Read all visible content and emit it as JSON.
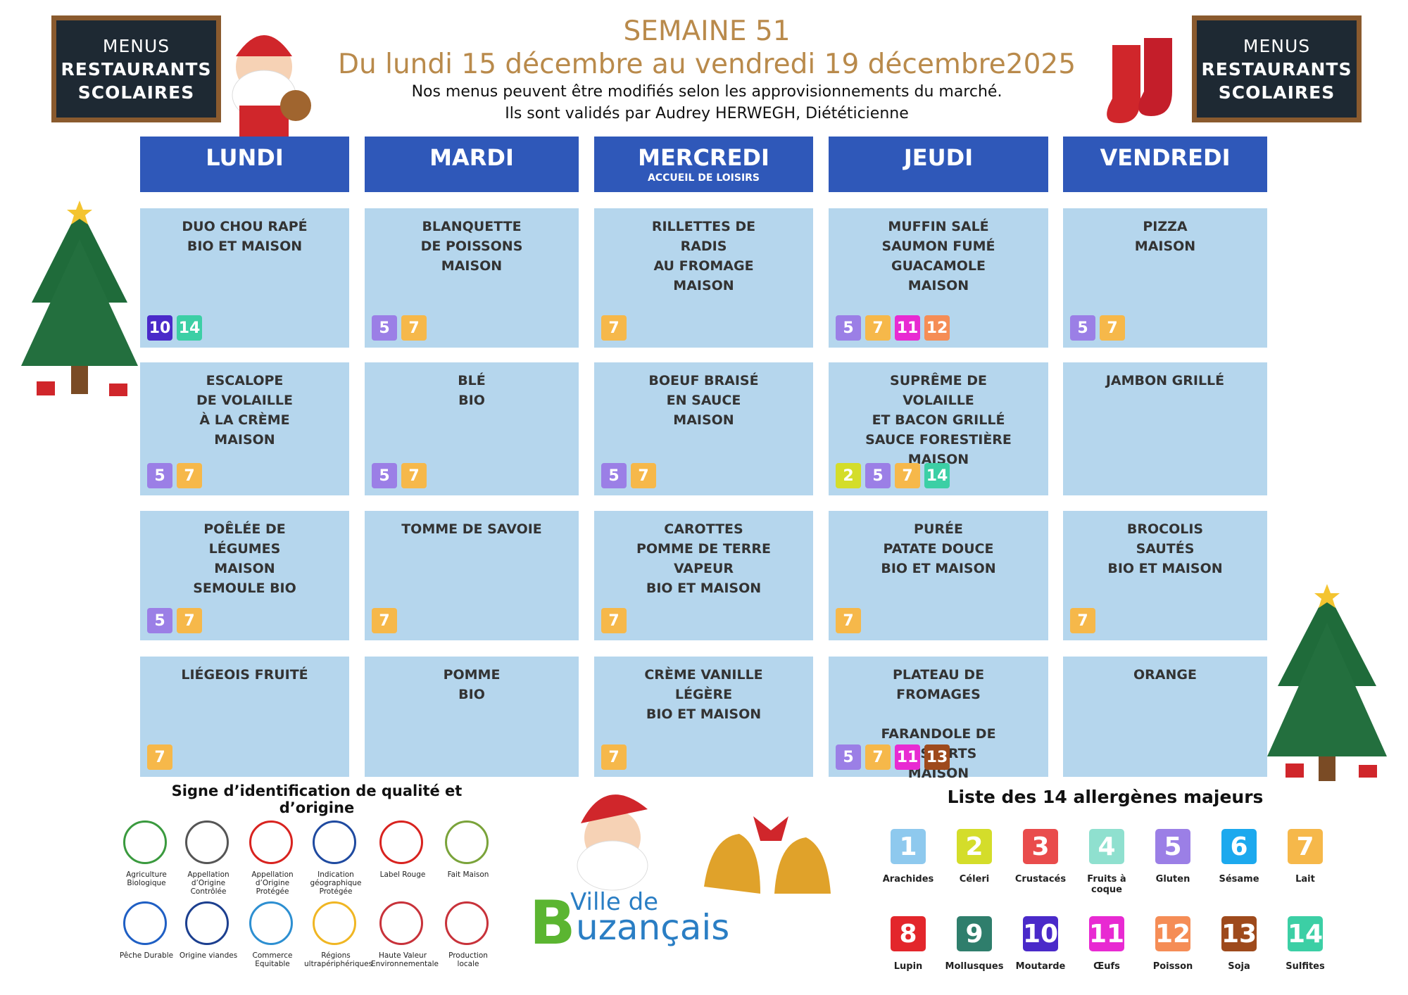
{
  "header": {
    "badges": [
      [
        "MENUS",
        "RESTAURANTS",
        "SCOLAIRES"
      ],
      [
        "MENUS",
        "RESTAURANTS",
        "SCOLAIRES"
      ]
    ],
    "title": "SEMAINE 51",
    "subtitle": "Du lundi 15 décembre au vendredi 19 décembre2025",
    "notes": [
      "Nos menus peuvent être modifiés selon les approvisionnements du marché.",
      "Ils sont validés par Audrey HERWEGH, Diététicienne"
    ]
  },
  "menu": {
    "days": [
      {
        "name": "LUNDI"
      },
      {
        "name": "MARDI"
      },
      {
        "name": "MERCREDI",
        "note": "ACCUEIL DE LOISIRS"
      },
      {
        "name": "JEUDI"
      },
      {
        "name": "VENDREDI"
      }
    ],
    "rows": [
      [
        {
          "dishes": [
            [
              "DUO CHOU RAPÉ",
              "BIO ET MAISON"
            ]
          ],
          "allergens": [
            10,
            14
          ]
        },
        {
          "dishes": [
            [
              "BLANQUETTE",
              "DE POISSONS",
              "MAISON"
            ]
          ],
          "allergens": [
            5,
            7
          ]
        },
        {
          "dishes": [
            [
              "RILLETTES DE RADIS",
              "AU FROMAGE",
              "MAISON"
            ]
          ],
          "allergens": [
            7
          ]
        },
        {
          "dishes": [
            [
              "MUFFIN SALÉ",
              "SAUMON FUMÉ",
              "GUACAMOLE",
              "MAISON"
            ]
          ],
          "allergens": [
            5,
            7,
            11,
            12
          ]
        },
        {
          "dishes": [
            [
              "PIZZA",
              "MAISON"
            ]
          ],
          "allergens": [
            5,
            7
          ]
        }
      ],
      [
        {
          "dishes": [
            [
              "ESCALOPE",
              "DE VOLAILLE",
              "À LA CRÈME",
              "MAISON"
            ]
          ],
          "allergens": [
            5,
            7
          ]
        },
        {
          "dishes": [
            [
              "BLÉ",
              "BIO"
            ]
          ],
          "allergens": [
            5,
            7
          ]
        },
        {
          "dishes": [
            [
              "BOEUF BRAISÉ",
              "EN SAUCE",
              "MAISON"
            ]
          ],
          "allergens": [
            5,
            7
          ]
        },
        {
          "dishes": [
            [
              "SUPRÊME DE VOLAILLE",
              "ET BACON GRILLÉ",
              "SAUCE FORESTIÈRE",
              "MAISON"
            ]
          ],
          "allergens": [
            2,
            5,
            7,
            14
          ]
        },
        {
          "dishes": [
            [
              "JAMBON GRILLÉ"
            ]
          ],
          "allergens": []
        }
      ],
      [
        {
          "dishes": [
            [
              "POÊLÉE DE LÉGUMES",
              "MAISON",
              "SEMOULE BIO"
            ]
          ],
          "allergens": [
            5,
            7
          ]
        },
        {
          "dishes": [
            [
              "TOMME DE SAVOIE"
            ]
          ],
          "allergens": [
            7
          ]
        },
        {
          "dishes": [
            [
              "CAROTTES",
              "POMME DE TERRE",
              "VAPEUR",
              "BIO ET MAISON"
            ]
          ],
          "allergens": [
            7
          ]
        },
        {
          "dishes": [
            [
              "PURÉE",
              "PATATE DOUCE",
              "BIO ET MAISON"
            ]
          ],
          "allergens": [
            7
          ]
        },
        {
          "dishes": [
            [
              "BROCOLIS SAUTÉS",
              "BIO ET MAISON"
            ]
          ],
          "allergens": [
            7
          ]
        }
      ],
      [
        {
          "dishes": [
            [
              "LIÉGEOIS FRUITÉ"
            ]
          ],
          "allergens": [
            7
          ]
        },
        {
          "dishes": [
            [
              "POMME",
              "BIO"
            ]
          ],
          "allergens": []
        },
        {
          "dishes": [
            [
              "CRÈME VANILLE",
              "LÉGÈRE",
              "BIO ET MAISON"
            ]
          ],
          "allergens": [
            7
          ]
        },
        {
          "dishes": [
            [
              "PLATEAU DE FROMAGES"
            ],
            [
              "FARANDOLE DE DESSERTS",
              "MAISON"
            ]
          ],
          "allergens": [
            5,
            7,
            11,
            13
          ]
        },
        {
          "dishes": [
            [
              "ORANGE"
            ]
          ],
          "allergens": []
        }
      ]
    ]
  },
  "quality": {
    "title": "Signe d’identification de qualité et d’origine",
    "items": [
      {
        "name": "Agriculture Biologique",
        "color": "#3a9a3e"
      },
      {
        "name": "Appellation d’Origine Contrôlée",
        "color": "#555555"
      },
      {
        "name": "Appellation d’Origine Protégée",
        "color": "#d8231f"
      },
      {
        "name": "Indication géographique Protégée",
        "color": "#1f4aa0"
      },
      {
        "name": "Label Rouge",
        "color": "#d8231f"
      },
      {
        "name": "Fait Maison",
        "color": "#7aa33a"
      },
      {
        "name": "Pêche Durable",
        "color": "#1f5fc4"
      },
      {
        "name": "Origine viandes",
        "color": "#1c3f8f"
      },
      {
        "name": "Commerce Equitable",
        "color": "#2d8fd1"
      },
      {
        "name": "Régions ultrapériphériques",
        "color": "#f0b623"
      },
      {
        "name": "Haute Valeur Environnementale",
        "color": "#c8323a"
      },
      {
        "name": "Production locale",
        "color": "#c8323a"
      }
    ]
  },
  "allergens": {
    "title": "Liste des 14 allergènes majeurs",
    "items": [
      {
        "number": 1,
        "name": "Arachides",
        "color": "#8ec9ee"
      },
      {
        "number": 2,
        "name": "Céleri",
        "color": "#d4dd2a"
      },
      {
        "number": 3,
        "name": "Crustacés",
        "color": "#e94c4c"
      },
      {
        "number": 4,
        "name": "Fruits à coque",
        "color": "#8fe0cf"
      },
      {
        "number": 5,
        "name": "Gluten",
        "color": "#9b7fe6"
      },
      {
        "number": 6,
        "name": "Sésame",
        "color": "#1ca9ee"
      },
      {
        "number": 7,
        "name": "Lait",
        "color": "#f6b84a"
      },
      {
        "number": 8,
        "name": "Lupin",
        "color": "#e3262b"
      },
      {
        "number": 9,
        "name": "Mollusques",
        "color": "#2f7e6c"
      },
      {
        "number": 10,
        "name": "Moutarde",
        "color": "#4a2ac9"
      },
      {
        "number": 11,
        "name": "Œufs",
        "color": "#e82ad2"
      },
      {
        "number": 12,
        "name": "Poisson",
        "color": "#f58d56"
      },
      {
        "number": 13,
        "name": "Soja",
        "color": "#9e4a1c"
      },
      {
        "number": 14,
        "name": "Sulfites",
        "color": "#3ccfa5"
      }
    ]
  },
  "logo": {
    "line1": "Ville de",
    "initial": "B",
    "rest": "uzançais"
  }
}
